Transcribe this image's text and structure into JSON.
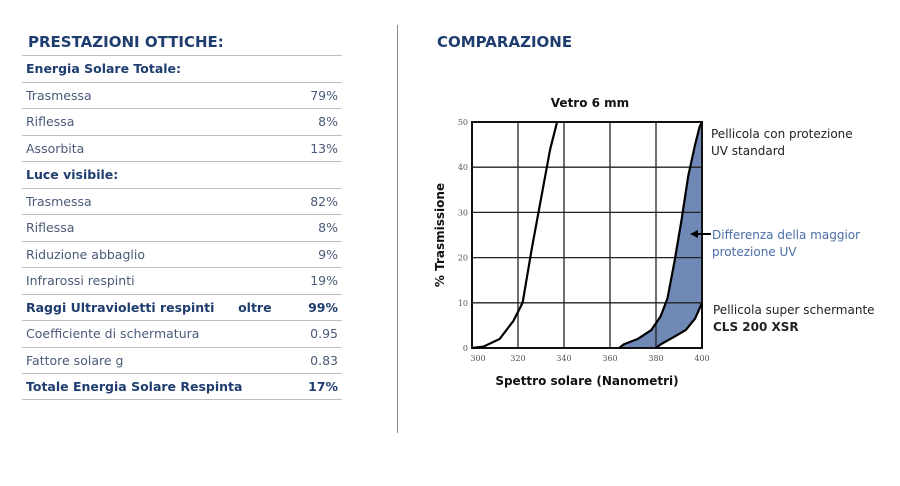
{
  "left": {
    "title": "PRESTAZIONI OTTICHE:",
    "rows": [
      {
        "label": "Energia Solare Totale:",
        "value": "",
        "bold": true
      },
      {
        "label": "Trasmessa",
        "value": "79%"
      },
      {
        "label": "Riflessa",
        "value": "8%"
      },
      {
        "label": "Assorbita",
        "value": "13%"
      },
      {
        "label": "Luce visibile:",
        "value": "",
        "bold": true
      },
      {
        "label": "Trasmessa",
        "value": "82%"
      },
      {
        "label": "Riflessa",
        "value": "8%"
      },
      {
        "label": "Riduzione abbaglio",
        "value": "9%"
      },
      {
        "label": "Infrarossi  respinti",
        "value": "19%"
      },
      {
        "label": "Raggi Ultravioletti respinti",
        "mid": "oltre",
        "value": "99%",
        "bold": true
      },
      {
        "label": "Coefficiente di schermatura",
        "value": "0.95"
      },
      {
        "label": "Fattore solare g",
        "value": "0.83"
      },
      {
        "label": "Totale Energia Solare Respinta",
        "value": "17%",
        "bold": true
      }
    ]
  },
  "right": {
    "title": "COMPARAZIONE"
  },
  "chart_data": {
    "type": "line",
    "title": "Vetro 6 mm",
    "xlabel": "Spettro solare (Nanometri)",
    "ylabel": "% Trasmissione",
    "xlim": [
      300,
      400
    ],
    "ylim": [
      0,
      50
    ],
    "xticks": [
      300,
      320,
      340,
      360,
      380,
      400
    ],
    "yticks": [
      0,
      10,
      20,
      30,
      40,
      50
    ],
    "grid": true,
    "fill_color": "#6f88b5",
    "series": [
      {
        "points": [
          [
            300,
            0
          ],
          [
            305,
            0.3
          ],
          [
            312,
            2
          ],
          [
            318,
            6
          ],
          [
            322,
            10
          ],
          [
            326,
            22
          ],
          [
            330,
            33
          ],
          [
            334,
            44
          ],
          [
            337,
            50
          ]
        ]
      },
      {
        "name": "Pellicola con protezione UV standard",
        "points": [
          [
            364,
            0
          ],
          [
            366,
            0.8
          ],
          [
            372,
            2
          ],
          [
            378,
            4
          ],
          [
            382,
            7
          ],
          [
            385,
            11
          ],
          [
            388,
            19
          ],
          [
            391,
            28
          ],
          [
            394,
            38
          ],
          [
            397,
            45
          ],
          [
            399,
            49
          ],
          [
            400,
            50
          ]
        ]
      },
      {
        "name": "Pellicola super schermante CLS 200 XSR",
        "points": [
          [
            380,
            0
          ],
          [
            382,
            0.8
          ],
          [
            388,
            2.5
          ],
          [
            393,
            4
          ],
          [
            397,
            6.5
          ],
          [
            400,
            10
          ]
        ]
      }
    ],
    "annotations": {
      "standard": [
        "Pellicola con protezione",
        "UV standard"
      ],
      "difference": [
        "Differenza della maggior",
        "protezione UV"
      ],
      "xsr": [
        "Pellicola super schermante",
        "CLS 200 XSR"
      ],
      "difference_color": "#4a6ea8"
    }
  }
}
